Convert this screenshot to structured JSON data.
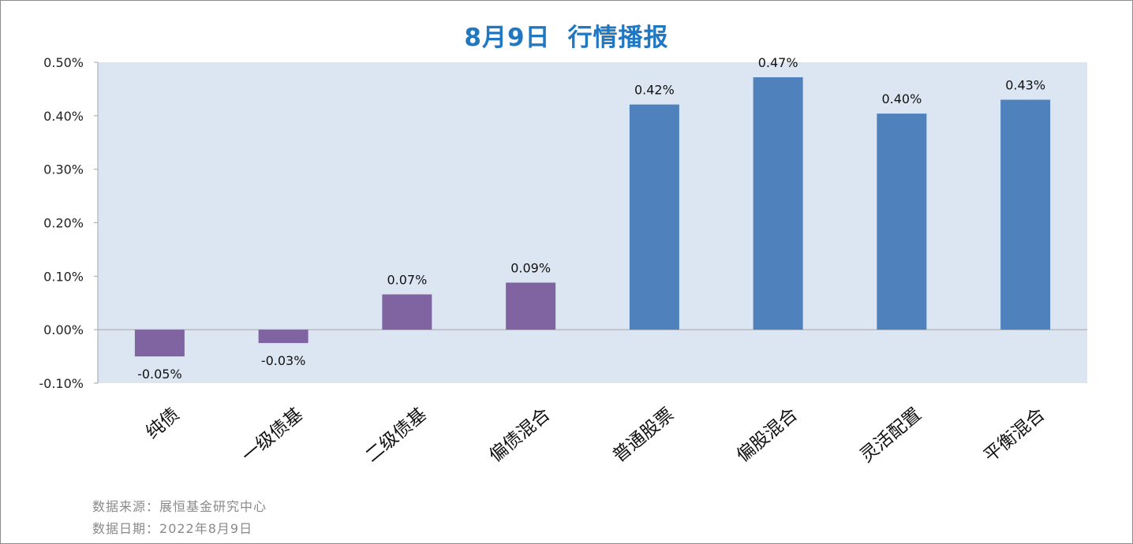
{
  "title": {
    "date": "8月9日",
    "text": "行情播报"
  },
  "colors": {
    "title": "#1f78c1",
    "plot_bg": "#dce6f2",
    "negative_and_bond": "#8064a2",
    "equity": "#4f81bd",
    "axis": "#a6a6a6"
  },
  "chart_data": {
    "type": "bar",
    "title": "8月9日 行情播报",
    "categories": [
      "纯债",
      "一级债基",
      "二级债基",
      "偏债混合",
      "普通股票",
      "偏股混合",
      "灵活配置",
      "平衡混合"
    ],
    "values": [
      -0.05,
      -0.025,
      0.066,
      0.088,
      0.421,
      0.472,
      0.404,
      0.43
    ],
    "data_labels": [
      "-0.05%",
      "-0.03%",
      "0.07%",
      "0.09%",
      "0.42%",
      "0.47%",
      "0.40%",
      "0.43%"
    ],
    "bar_colors": [
      "#8064a2",
      "#8064a2",
      "#8064a2",
      "#8064a2",
      "#4f81bd",
      "#4f81bd",
      "#4f81bd",
      "#4f81bd"
    ],
    "unit": "%",
    "ylim": [
      -0.1,
      0.5
    ],
    "yticks": [
      -0.1,
      0.0,
      0.1,
      0.2,
      0.3,
      0.4,
      0.5
    ],
    "ytick_labels": [
      "-0.10%",
      "0.00%",
      "0.10%",
      "0.20%",
      "0.30%",
      "0.40%",
      "0.50%"
    ],
    "grid": false,
    "legend": "none",
    "xlabel": "",
    "ylabel": ""
  },
  "footer": {
    "source_label": "数据来源：",
    "source_value": "展恒基金研究中心",
    "date_label": "数据日期：",
    "date_value": "2022年8月9日"
  }
}
